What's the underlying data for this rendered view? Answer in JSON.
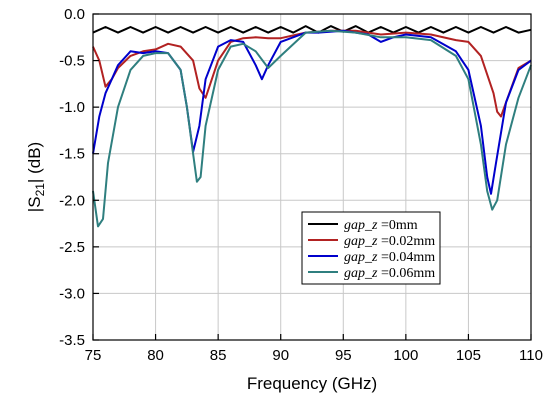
{
  "chart_data": {
    "type": "line",
    "xlabel": "Frequency (GHz)",
    "ylabel_prefix": "|S",
    "ylabel_sub": "21",
    "ylabel_suffix": "| (dB)",
    "xlim": [
      75,
      110
    ],
    "ylim": [
      -3.5,
      0.0
    ],
    "xticks": [
      {
        "value": 75,
        "label": "75"
      },
      {
        "value": 80,
        "label": "80"
      },
      {
        "value": 85,
        "label": "85"
      },
      {
        "value": 90,
        "label": "90"
      },
      {
        "value": 95,
        "label": "95"
      },
      {
        "value": 100,
        "label": "100"
      },
      {
        "value": 105,
        "label": "105"
      },
      {
        "value": 110,
        "label": "110"
      }
    ],
    "yticks": [
      {
        "value": 0.0,
        "label": "0.0"
      },
      {
        "value": -0.5,
        "label": "-0.5"
      },
      {
        "value": -1.0,
        "label": "-1.0"
      },
      {
        "value": -1.5,
        "label": "-1.5"
      },
      {
        "value": -2.0,
        "label": "-2.0"
      },
      {
        "value": -2.5,
        "label": "-2.5"
      },
      {
        "value": -3.0,
        "label": "-3.0"
      },
      {
        "value": -3.5,
        "label": "-3.5"
      }
    ],
    "grid": true,
    "legend_position": "lower-right",
    "series": [
      {
        "name_italic": "gap_z",
        "name_rest": " =0mm",
        "color": "#000000",
        "x": [
          75,
          76,
          77,
          78,
          79,
          80,
          81,
          82,
          83,
          84,
          85,
          86,
          87,
          88,
          89,
          90,
          91,
          92,
          93,
          94,
          95,
          96,
          97,
          98,
          99,
          100,
          101,
          102,
          103,
          104,
          105,
          106,
          107,
          108,
          109,
          110
        ],
        "y": [
          -0.2,
          -0.14,
          -0.2,
          -0.14,
          -0.2,
          -0.14,
          -0.2,
          -0.14,
          -0.2,
          -0.14,
          -0.2,
          -0.14,
          -0.2,
          -0.14,
          -0.2,
          -0.14,
          -0.2,
          -0.13,
          -0.2,
          -0.13,
          -0.19,
          -0.13,
          -0.2,
          -0.14,
          -0.2,
          -0.14,
          -0.2,
          -0.14,
          -0.2,
          -0.14,
          -0.2,
          -0.14,
          -0.2,
          -0.14,
          -0.2,
          -0.17
        ]
      },
      {
        "name_italic": "gap_z",
        "name_rest": " =0.02mm",
        "color": "#b22222",
        "x": [
          75,
          75.5,
          76,
          76.5,
          77,
          78,
          79,
          80,
          81,
          82,
          83,
          83.5,
          84,
          85,
          86,
          87,
          88,
          89,
          90,
          92,
          94,
          96,
          98,
          100,
          102,
          104,
          105,
          106,
          107,
          107.3,
          107.6,
          108,
          109,
          110
        ],
        "y": [
          -0.35,
          -0.5,
          -0.78,
          -0.7,
          -0.58,
          -0.45,
          -0.4,
          -0.38,
          -0.32,
          -0.35,
          -0.5,
          -0.8,
          -0.9,
          -0.5,
          -0.3,
          -0.26,
          -0.25,
          -0.26,
          -0.26,
          -0.2,
          -0.18,
          -0.18,
          -0.22,
          -0.2,
          -0.22,
          -0.28,
          -0.3,
          -0.45,
          -0.85,
          -1.05,
          -1.1,
          -0.95,
          -0.58,
          -0.5
        ]
      },
      {
        "name_italic": "gap_z",
        "name_rest": " =0.04mm",
        "color": "#0000cc",
        "x": [
          75,
          75.5,
          76,
          76.5,
          77,
          78,
          79,
          80,
          81,
          82,
          82.5,
          83,
          83.5,
          84,
          85,
          86,
          87,
          88,
          88.5,
          89,
          90,
          91,
          92,
          93,
          95,
          97,
          98,
          99,
          100,
          102,
          104,
          105,
          106,
          106.5,
          106.8,
          107.2,
          108,
          109,
          110
        ],
        "y": [
          -1.5,
          -1.1,
          -0.85,
          -0.7,
          -0.55,
          -0.4,
          -0.42,
          -0.4,
          -0.42,
          -0.6,
          -1.0,
          -1.48,
          -1.2,
          -0.7,
          -0.35,
          -0.28,
          -0.3,
          -0.55,
          -0.7,
          -0.55,
          -0.3,
          -0.25,
          -0.2,
          -0.2,
          -0.18,
          -0.22,
          -0.3,
          -0.25,
          -0.22,
          -0.25,
          -0.4,
          -0.6,
          -1.2,
          -1.75,
          -1.93,
          -1.6,
          -0.95,
          -0.6,
          -0.5
        ]
      },
      {
        "name_italic": "gap_z",
        "name_rest": " =0.06mm",
        "color": "#2f7f7f",
        "x": [
          75,
          75.4,
          75.8,
          76.2,
          77,
          78,
          79,
          80,
          81,
          82,
          82.5,
          83,
          83.3,
          83.6,
          84,
          85,
          86,
          87,
          88,
          89,
          90,
          92,
          94,
          96,
          98,
          100,
          102,
          104,
          105,
          106,
          106.5,
          106.9,
          107.3,
          108,
          109,
          110
        ],
        "y": [
          -1.9,
          -2.28,
          -2.2,
          -1.6,
          -1.0,
          -0.6,
          -0.45,
          -0.42,
          -0.42,
          -0.6,
          -1.0,
          -1.5,
          -1.8,
          -1.75,
          -1.2,
          -0.6,
          -0.35,
          -0.32,
          -0.4,
          -0.58,
          -0.45,
          -0.2,
          -0.18,
          -0.2,
          -0.25,
          -0.25,
          -0.28,
          -0.45,
          -0.7,
          -1.4,
          -1.9,
          -2.1,
          -2.0,
          -1.4,
          -0.9,
          -0.55
        ]
      }
    ]
  }
}
